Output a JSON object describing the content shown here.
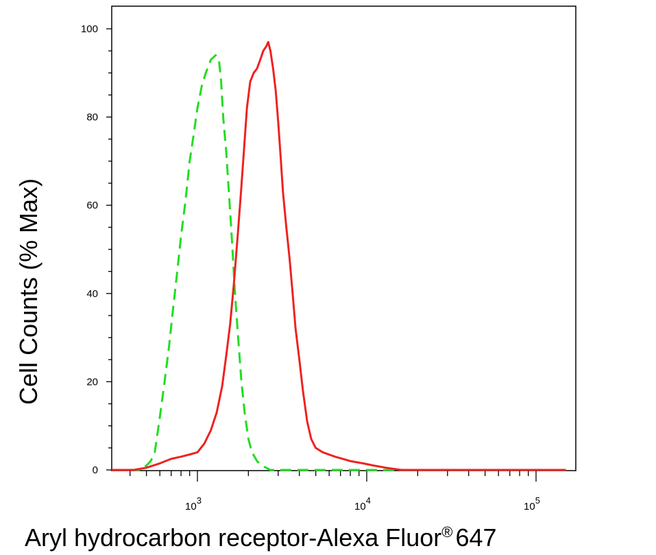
{
  "chart_data": {
    "type": "line",
    "xlabel": "Aryl hydrocarbon receptor-Alexa Fluor",
    "xlabel_mark": "®",
    "xlabel_tail": "647",
    "ylabel": "Cell Counts (% Max)",
    "x_scale": "log",
    "xlim": [
      280,
      150000
    ],
    "ylim": [
      -2,
      105
    ],
    "grid": false,
    "y_ticks": [
      {
        "value": 0,
        "label": "0"
      },
      {
        "value": 20,
        "label": "20"
      },
      {
        "value": 40,
        "label": "40"
      },
      {
        "value": 60,
        "label": "60"
      },
      {
        "value": 80,
        "label": "80"
      },
      {
        "value": 100,
        "label": "100"
      }
    ],
    "x_ticks": [
      {
        "value": 1000,
        "base": "10",
        "exp": "3"
      },
      {
        "value": 10000,
        "base": "10",
        "exp": "4"
      },
      {
        "value": 100000,
        "base": "10",
        "exp": "5"
      }
    ],
    "series": [
      {
        "color": "#22dd22",
        "style": "dashed",
        "points": [
          [
            280,
            0
          ],
          [
            460,
            0
          ],
          [
            500,
            1
          ],
          [
            530,
            2
          ],
          [
            560,
            4
          ],
          [
            600,
            12
          ],
          [
            640,
            20
          ],
          [
            680,
            28
          ],
          [
            720,
            37
          ],
          [
            760,
            45
          ],
          [
            800,
            53
          ],
          [
            850,
            61
          ],
          [
            900,
            70
          ],
          [
            950,
            76
          ],
          [
            1000,
            82
          ],
          [
            1060,
            87
          ],
          [
            1120,
            90
          ],
          [
            1200,
            93
          ],
          [
            1280,
            94
          ],
          [
            1340,
            93
          ],
          [
            1380,
            88
          ],
          [
            1420,
            80
          ],
          [
            1480,
            72
          ],
          [
            1540,
            62
          ],
          [
            1600,
            52
          ],
          [
            1660,
            41
          ],
          [
            1740,
            30
          ],
          [
            1820,
            20
          ],
          [
            1900,
            13
          ],
          [
            2000,
            7
          ],
          [
            2100,
            4
          ],
          [
            2250,
            2
          ],
          [
            2400,
            1
          ],
          [
            2700,
            0
          ],
          [
            150000,
            0
          ]
        ]
      },
      {
        "color": "#ee2222",
        "style": "solid",
        "points": [
          [
            280,
            0
          ],
          [
            350,
            0
          ],
          [
            420,
            0
          ],
          [
            500,
            0.5
          ],
          [
            600,
            1.5
          ],
          [
            700,
            2.5
          ],
          [
            800,
            3
          ],
          [
            900,
            3.5
          ],
          [
            1000,
            4
          ],
          [
            1100,
            6
          ],
          [
            1200,
            9
          ],
          [
            1300,
            13
          ],
          [
            1400,
            19
          ],
          [
            1480,
            26
          ],
          [
            1560,
            33
          ],
          [
            1640,
            42
          ],
          [
            1720,
            52
          ],
          [
            1800,
            62
          ],
          [
            1880,
            72
          ],
          [
            1960,
            82
          ],
          [
            2050,
            88
          ],
          [
            2150,
            90
          ],
          [
            2250,
            91
          ],
          [
            2350,
            93
          ],
          [
            2450,
            95
          ],
          [
            2550,
            96
          ],
          [
            2620,
            97
          ],
          [
            2700,
            95
          ],
          [
            2800,
            91
          ],
          [
            2900,
            86
          ],
          [
            3000,
            79
          ],
          [
            3100,
            71
          ],
          [
            3200,
            63
          ],
          [
            3350,
            55
          ],
          [
            3500,
            48
          ],
          [
            3650,
            40
          ],
          [
            3800,
            32
          ],
          [
            4000,
            25
          ],
          [
            4200,
            18
          ],
          [
            4450,
            11
          ],
          [
            4700,
            7
          ],
          [
            5000,
            5
          ],
          [
            5500,
            4
          ],
          [
            6500,
            3
          ],
          [
            8000,
            2
          ],
          [
            9500,
            1.5
          ],
          [
            11000,
            1
          ],
          [
            13000,
            0.5
          ],
          [
            16000,
            0
          ],
          [
            150000,
            0
          ]
        ]
      }
    ]
  }
}
